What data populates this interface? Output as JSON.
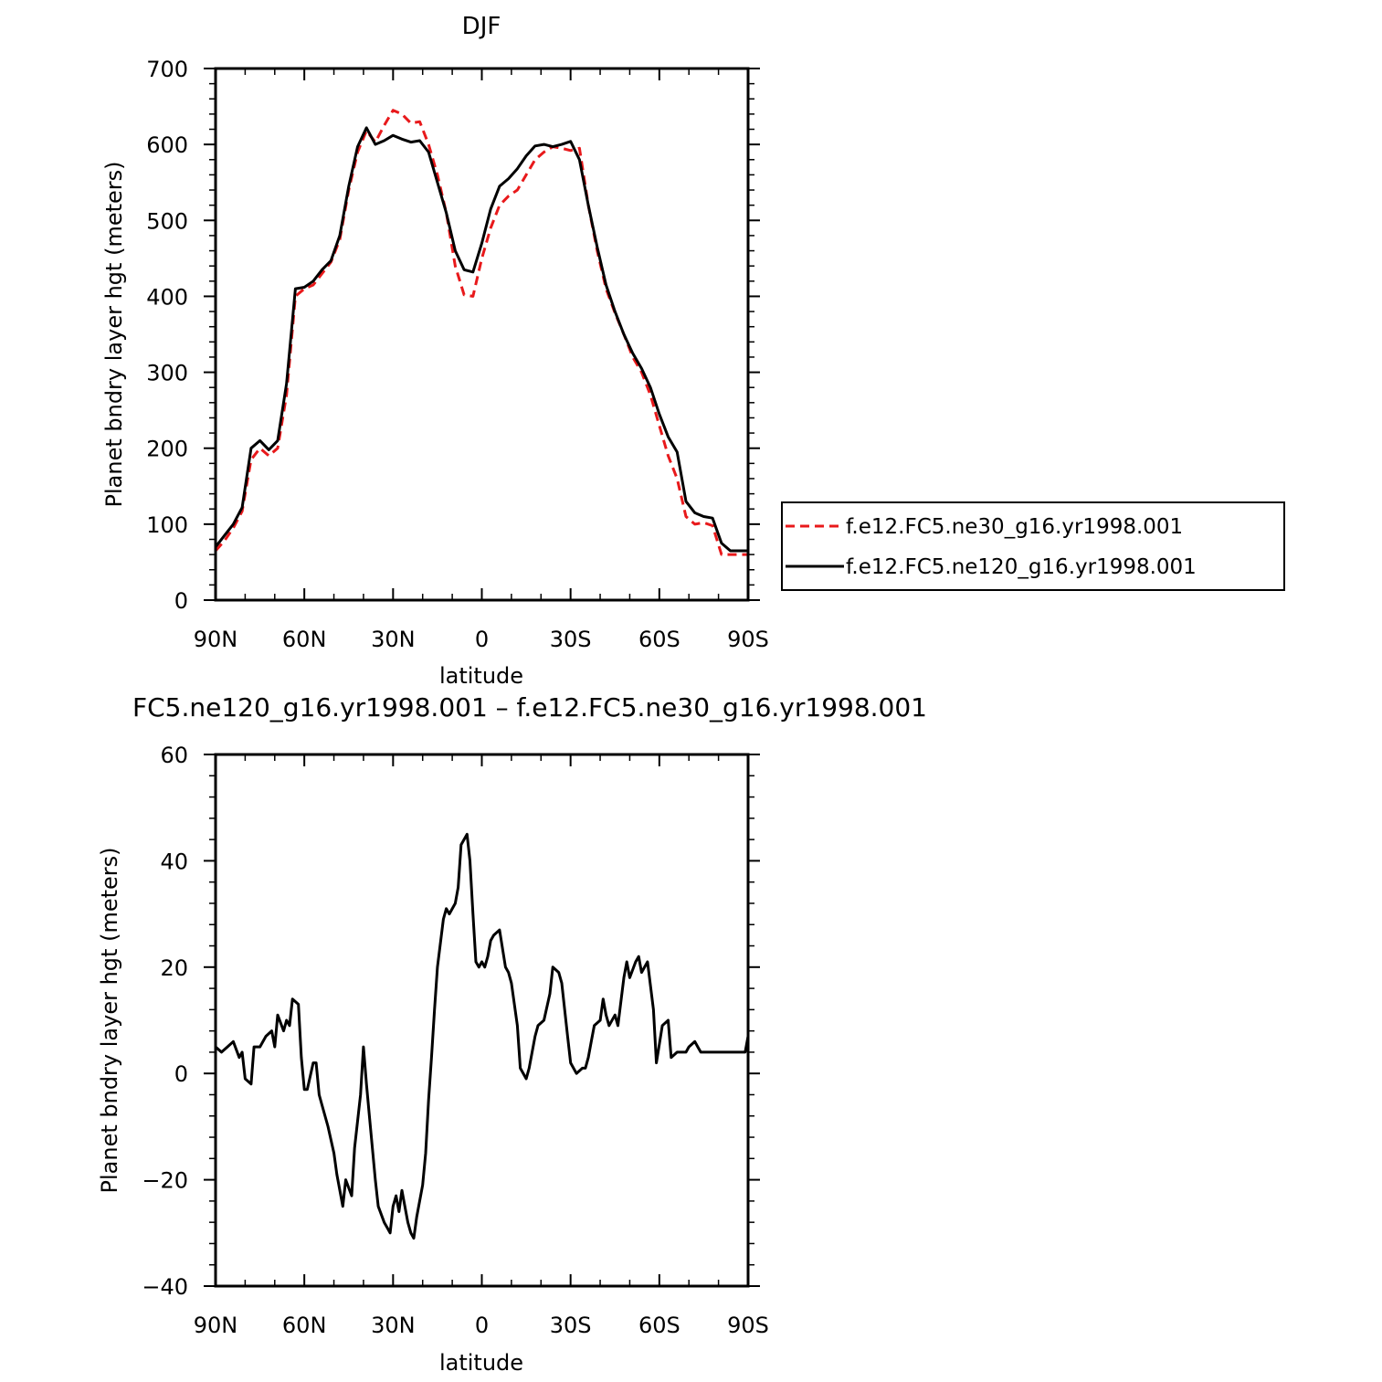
{
  "chart_data": [
    {
      "type": "line",
      "title": "DJF",
      "xlabel": "latitude",
      "ylabel": "Planet bndry layer hgt (meters)",
      "xlim": [
        90,
        -90
      ],
      "ylim": [
        0,
        700
      ],
      "x_ticks": [
        90,
        60,
        30,
        0,
        -30,
        -60,
        -90
      ],
      "x_tick_labels": [
        "90N",
        "60N",
        "30N",
        "0",
        "30S",
        "60S",
        "90S"
      ],
      "y_ticks": [
        0,
        100,
        200,
        300,
        400,
        500,
        600,
        700
      ],
      "y_tick_labels": [
        "0",
        "100",
        "200",
        "300",
        "400",
        "500",
        "600",
        "700"
      ],
      "legend": "right",
      "series": [
        {
          "name": "f.e12.FC5.ne30_g16.yr1998.001",
          "color": "#e8191b",
          "dash": "dashed",
          "x": [
            90,
            87,
            84,
            81,
            78,
            75,
            72,
            69,
            66,
            63,
            60,
            57,
            54,
            51,
            48,
            45,
            42,
            39,
            36,
            33,
            30,
            27,
            24,
            21,
            18,
            15,
            12,
            9,
            6,
            3,
            0,
            -3,
            -6,
            -9,
            -12,
            -15,
            -18,
            -21,
            -24,
            -27,
            -30,
            -33,
            -36,
            -39,
            -42,
            -45,
            -48,
            -51,
            -54,
            -57,
            -60,
            -63,
            -66,
            -69,
            -72,
            -75,
            -78,
            -81,
            -84,
            -87,
            -90
          ],
          "y": [
            65,
            78,
            95,
            117,
            185,
            200,
            190,
            200,
            270,
            400,
            410,
            415,
            430,
            445,
            475,
            540,
            590,
            618,
            603,
            625,
            645,
            640,
            628,
            630,
            600,
            560,
            510,
            440,
            402,
            400,
            450,
            490,
            520,
            532,
            540,
            560,
            580,
            590,
            597,
            595,
            592,
            595,
            520,
            460,
            410,
            378,
            350,
            320,
            300,
            270,
            230,
            190,
            160,
            110,
            100,
            102,
            98,
            60,
            60,
            60,
            60
          ]
        },
        {
          "name": "f.e12.FC5.ne120_g16.yr1998.001",
          "color": "#000000",
          "dash": "solid",
          "x": [
            90,
            87,
            84,
            81,
            78,
            75,
            72,
            69,
            66,
            63,
            60,
            57,
            54,
            51,
            48,
            45,
            42,
            39,
            36,
            33,
            30,
            27,
            24,
            21,
            18,
            15,
            12,
            9,
            6,
            3,
            0,
            -3,
            -6,
            -9,
            -12,
            -15,
            -18,
            -21,
            -24,
            -27,
            -30,
            -33,
            -36,
            -39,
            -42,
            -45,
            -48,
            -51,
            -54,
            -57,
            -60,
            -63,
            -66,
            -69,
            -72,
            -75,
            -78,
            -81,
            -84,
            -87,
            -90
          ],
          "y": [
            70,
            85,
            100,
            122,
            200,
            210,
            198,
            210,
            285,
            410,
            412,
            420,
            435,
            447,
            480,
            545,
            597,
            622,
            600,
            605,
            612,
            607,
            603,
            605,
            590,
            550,
            510,
            460,
            435,
            432,
            470,
            515,
            545,
            555,
            568,
            585,
            598,
            600,
            597,
            600,
            604,
            580,
            520,
            465,
            415,
            380,
            350,
            325,
            305,
            280,
            245,
            215,
            195,
            130,
            115,
            110,
            108,
            75,
            65,
            65,
            65
          ]
        }
      ]
    },
    {
      "type": "line",
      "title": "FC5.ne120_g16.yr1998.001 – f.e12.FC5.ne30_g16.yr1998.001",
      "xlabel": "latitude",
      "ylabel": "Planet bndry layer hgt (meters)",
      "xlim": [
        90,
        -90
      ],
      "ylim": [
        -40,
        60
      ],
      "x_ticks": [
        90,
        60,
        30,
        0,
        -30,
        -60,
        -90
      ],
      "x_tick_labels": [
        "90N",
        "60N",
        "30N",
        "0",
        "30S",
        "60S",
        "90S"
      ],
      "y_ticks": [
        -40,
        -20,
        0,
        20,
        40,
        60
      ],
      "y_tick_labels": [
        "−40",
        "−20",
        "0",
        "20",
        "40",
        "60"
      ],
      "series": [
        {
          "color": "#000000",
          "dash": "solid",
          "x": [
            90,
            88,
            86,
            84,
            82,
            81,
            80,
            78,
            77,
            75,
            73,
            71,
            70,
            69,
            67,
            66,
            65,
            64,
            62,
            61,
            60,
            59,
            57,
            56,
            55,
            54,
            52,
            50,
            49,
            47,
            46,
            44,
            43,
            41,
            40,
            39,
            38,
            36,
            35,
            33,
            32,
            31,
            30,
            29,
            28,
            27,
            25,
            24,
            23,
            22,
            20,
            19,
            18,
            17,
            16,
            15,
            13,
            12,
            11,
            9,
            8,
            7,
            5,
            4,
            3,
            2,
            1,
            0,
            -1,
            -2,
            -3,
            -4,
            -6,
            -8,
            -9,
            -10,
            -12,
            -13,
            -15,
            -16,
            -18,
            -19,
            -21,
            -23,
            -24,
            -26,
            -27,
            -28,
            -29,
            -30,
            -32,
            -34,
            -35,
            -36,
            -37,
            -38,
            -40,
            -41,
            -42,
            -43,
            -45,
            -46,
            -48,
            -49,
            -50,
            -52,
            -53,
            -54,
            -56,
            -58,
            -59,
            -61,
            -63,
            -64,
            -66,
            -68,
            -69,
            -70,
            -72,
            -73,
            -74,
            -76,
            -77,
            -78,
            -79,
            -80,
            -81,
            -83,
            -84,
            -85,
            -86,
            -87,
            -88,
            -89,
            -90
          ],
          "y": [
            5,
            4,
            5,
            6,
            3,
            4,
            -1,
            -2,
            5,
            5,
            7,
            8,
            5,
            11,
            8,
            10,
            9,
            14,
            13,
            3,
            -3,
            -3,
            2,
            2,
            -4,
            -6,
            -10,
            -15,
            -19,
            -25,
            -20,
            -23,
            -14,
            -4,
            5,
            -2,
            -8,
            -20,
            -25,
            -28,
            -29,
            -30,
            -25,
            -23,
            -26,
            -22,
            -28,
            -30,
            -31,
            -27,
            -21,
            -15,
            -5,
            3,
            12,
            20,
            29,
            31,
            30,
            32,
            35,
            43,
            45,
            40,
            30,
            21,
            20,
            21,
            20,
            22,
            25,
            26,
            27,
            20,
            19,
            17,
            9,
            1,
            -1,
            1,
            7,
            9,
            10,
            15,
            20,
            19,
            17,
            12,
            7,
            2,
            0,
            1,
            1,
            3,
            6,
            9,
            10,
            14,
            11,
            9,
            11,
            9,
            18,
            21,
            18,
            21,
            22,
            19,
            21,
            12,
            2,
            9,
            10,
            3,
            4,
            4,
            4,
            5,
            6,
            5,
            4,
            4,
            4,
            4,
            4,
            4,
            4,
            4,
            4,
            4,
            4,
            4,
            4,
            4,
            7
          ]
        }
      ]
    }
  ]
}
